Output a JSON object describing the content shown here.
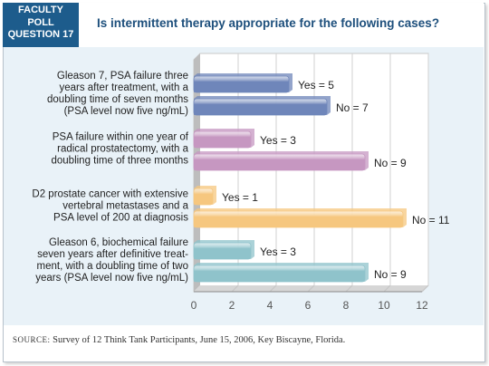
{
  "badge": {
    "line1": "FACULTY",
    "line2": "POLL",
    "line3": "QUESTION 17"
  },
  "question": "Is intermittent therapy appropriate for the following cases?",
  "source": {
    "label": "SOURCE:",
    "text": "Survey of 12 Think Tank Participants, June 15, 2006, Key Biscayne, Florida."
  },
  "colors": {
    "badge": "#1d5c8c",
    "title": "#1d4f7c",
    "panel": "#e9f2f8",
    "case1": "#6f86ba",
    "case2": "#c697c1",
    "case3": "#f6c77f",
    "case4": "#8fc3cb"
  },
  "chart_data": {
    "type": "bar",
    "orientation": "horizontal",
    "xlim": [
      0,
      12
    ],
    "xticks": [
      "0",
      "2",
      "4",
      "6",
      "8",
      "10",
      "12"
    ],
    "grid": true,
    "categories": [
      {
        "label_lines": [
          "Gleason 7, PSA failure three",
          "years after treatment, with a",
          "doubling time of seven months",
          "(PSA level now five ng/mL)"
        ],
        "bars": [
          {
            "value": 5,
            "label": "Yes = 5"
          },
          {
            "value": 7,
            "label": "No = 7"
          }
        ]
      },
      {
        "label_lines": [
          "PSA failure within one year of",
          "radical prostatectomy, with a",
          "doubling time of three months"
        ],
        "bars": [
          {
            "value": 3,
            "label": "Yes = 3"
          },
          {
            "value": 9,
            "label": "No = 9"
          }
        ]
      },
      {
        "label_lines": [
          "D2 prostate cancer with extensive",
          "vertebral metastases and a",
          "PSA level of 200 at diagnosis"
        ],
        "bars": [
          {
            "value": 1,
            "label": "Yes = 1"
          },
          {
            "value": 11,
            "label": "No = 11"
          }
        ]
      },
      {
        "label_lines": [
          "Gleason 6, biochemical failure",
          "seven years after definitive treat-",
          "ment, with a doubling time of two",
          "years (PSA level now five ng/mL)"
        ],
        "bars": [
          {
            "value": 3,
            "label": "Yes = 3"
          },
          {
            "value": 9,
            "label": "No = 9"
          }
        ]
      }
    ]
  }
}
